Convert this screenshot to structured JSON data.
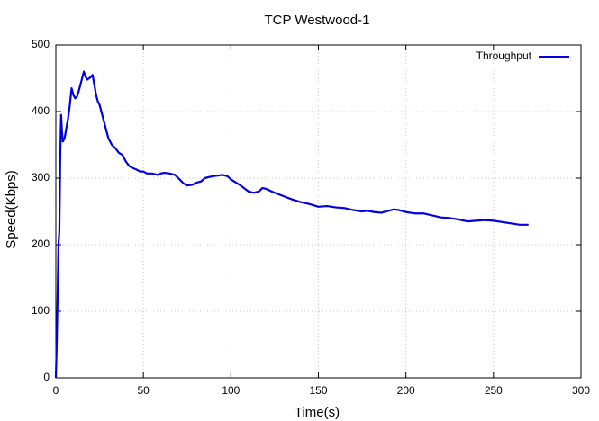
{
  "chart_data": {
    "type": "line",
    "title": "TCP Westwood-1",
    "x_label": "Time(s)",
    "y_label": "Speed(Kbps)",
    "xlim": [
      0,
      300
    ],
    "ylim": [
      0,
      500
    ],
    "xticks": [
      0,
      50,
      100,
      150,
      200,
      250,
      300
    ],
    "yticks": [
      0,
      100,
      200,
      300,
      400,
      500
    ],
    "grid": true,
    "legend_position": "top-right",
    "x": [
      0,
      0.5,
      1,
      1.5,
      2,
      2.5,
      3,
      3.5,
      4,
      5,
      6,
      7,
      8,
      9,
      10,
      11,
      12,
      13,
      14,
      15,
      16,
      17,
      18,
      19,
      20,
      21,
      22,
      23,
      24,
      25,
      26,
      28,
      30,
      32,
      34,
      36,
      38,
      40,
      42,
      44,
      46,
      48,
      50,
      52,
      55,
      58,
      60,
      62,
      65,
      68,
      70,
      73,
      75,
      78,
      80,
      83,
      85,
      88,
      90,
      93,
      95,
      98,
      100,
      105,
      110,
      113,
      116,
      118,
      120,
      125,
      130,
      135,
      140,
      145,
      150,
      155,
      160,
      165,
      170,
      175,
      178,
      182,
      186,
      190,
      193,
      196,
      200,
      205,
      210,
      215,
      220,
      225,
      230,
      235,
      240,
      245,
      250,
      255,
      260,
      265,
      270
    ],
    "series": [
      {
        "name": "Throughput",
        "color": "#0000e0",
        "values": [
          0,
          50,
          120,
          200,
          220,
          330,
          395,
          370,
          355,
          360,
          375,
          390,
          410,
          435,
          425,
          420,
          422,
          430,
          440,
          450,
          460,
          452,
          448,
          450,
          452,
          455,
          440,
          425,
          415,
          410,
          400,
          380,
          360,
          350,
          345,
          338,
          335,
          325,
          318,
          315,
          313,
          310,
          310,
          307,
          307,
          305,
          307,
          308,
          307,
          305,
          300,
          292,
          289,
          290,
          293,
          295,
          300,
          302,
          303,
          304,
          305,
          303,
          298,
          290,
          280,
          278,
          280,
          285,
          284,
          278,
          273,
          268,
          264,
          261,
          257,
          258,
          256,
          255,
          252,
          250,
          251,
          249,
          248,
          251,
          253,
          252,
          249,
          247,
          247,
          244,
          241,
          240,
          238,
          235,
          236,
          237,
          236,
          234,
          232,
          230,
          230
        ]
      }
    ]
  }
}
